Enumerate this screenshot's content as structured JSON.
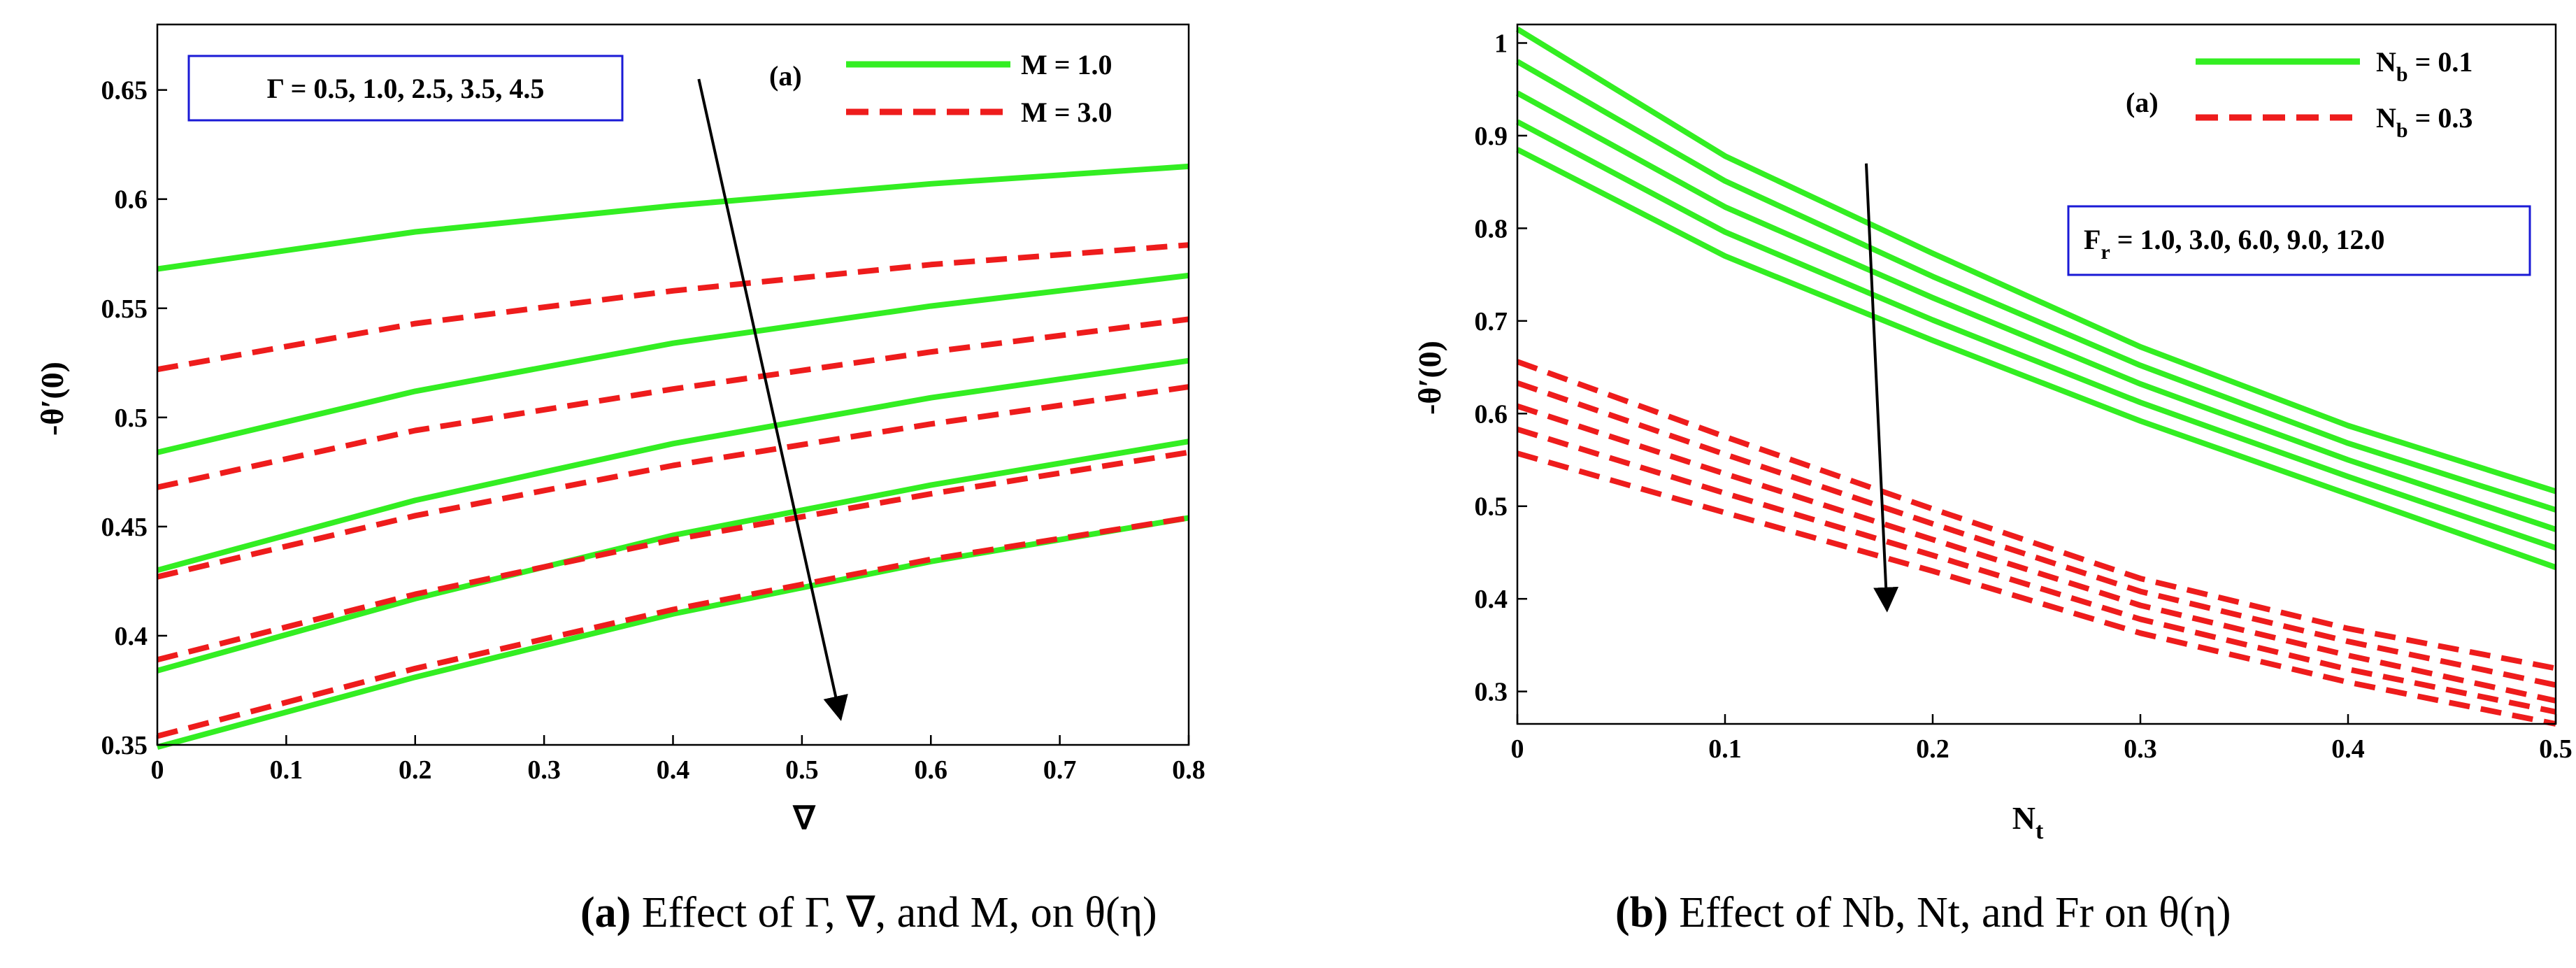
{
  "chart_data": [
    {
      "type": "line",
      "panel_label": "(a)",
      "xlabel": "∇",
      "ylabel": "-θ′(0)",
      "xlim": [
        0,
        0.8
      ],
      "ylim": [
        0.35,
        0.68
      ],
      "xticks": [
        "0",
        "0.1",
        "0.2",
        "0.3",
        "0.4",
        "0.5",
        "0.6",
        "0.7",
        "0.8"
      ],
      "yticks": [
        "0.35",
        "0.4",
        "0.45",
        "0.5",
        "0.55",
        "0.6",
        "0.65"
      ],
      "x": [
        0,
        0.2,
        0.4,
        0.6,
        0.8
      ],
      "legend": [
        "M = 1.0",
        "M = 3.0"
      ],
      "annotation": "Γ = 0.5, 1.0, 2.5, 3.5, 4.5",
      "series": [
        {
          "name": "M = 1.0, Γ = 0.5",
          "style": "solid",
          "color": "#33ee22",
          "values": [
            0.568,
            0.585,
            0.597,
            0.607,
            0.615
          ]
        },
        {
          "name": "M = 1.0, Γ = 1.0",
          "style": "solid",
          "color": "#33ee22",
          "values": [
            0.484,
            0.512,
            0.534,
            0.551,
            0.565
          ]
        },
        {
          "name": "M = 1.0, Γ = 2.5",
          "style": "solid",
          "color": "#33ee22",
          "values": [
            0.43,
            0.462,
            0.488,
            0.509,
            0.526
          ]
        },
        {
          "name": "M = 1.0, Γ = 3.5",
          "style": "solid",
          "color": "#33ee22",
          "values": [
            0.384,
            0.417,
            0.446,
            0.469,
            0.489
          ]
        },
        {
          "name": "M = 1.0, Γ = 4.5",
          "style": "solid",
          "color": "#33ee22",
          "values": [
            0.349,
            0.381,
            0.41,
            0.434,
            0.454
          ]
        },
        {
          "name": "M = 3.0, Γ = 0.5",
          "style": "dashed",
          "color": "#ee1c1c",
          "values": [
            0.522,
            0.543,
            0.558,
            0.57,
            0.579
          ]
        },
        {
          "name": "M = 3.0, Γ = 1.0",
          "style": "dashed",
          "color": "#ee1c1c",
          "values": [
            0.468,
            0.494,
            0.513,
            0.53,
            0.545
          ]
        },
        {
          "name": "M = 3.0, Γ = 2.5",
          "style": "dashed",
          "color": "#ee1c1c",
          "values": [
            0.427,
            0.455,
            0.478,
            0.497,
            0.514
          ]
        },
        {
          "name": "M = 3.0, Γ = 3.5",
          "style": "dashed",
          "color": "#ee1c1c",
          "values": [
            0.389,
            0.419,
            0.444,
            0.465,
            0.484
          ]
        },
        {
          "name": "M = 3.0, Γ = 4.5",
          "style": "dashed",
          "color": "#ee1c1c",
          "values": [
            0.354,
            0.385,
            0.412,
            0.435,
            0.454
          ]
        }
      ],
      "arrow": {
        "from": [
          0.42,
          0.655
        ],
        "to": [
          0.53,
          0.362
        ]
      }
    },
    {
      "type": "line",
      "panel_label": "(a)",
      "xlabel": "Nt",
      "ylabel": "-θ′(0)",
      "xlim": [
        0,
        0.5
      ],
      "ylim": [
        0.265,
        1.02
      ],
      "xticks": [
        "0",
        "0.1",
        "0.2",
        "0.3",
        "0.4",
        "0.5"
      ],
      "yticks": [
        "0.3",
        "0.4",
        "0.5",
        "0.6",
        "0.7",
        "0.8",
        "0.9",
        "1"
      ],
      "x": [
        0,
        0.1,
        0.2,
        0.3,
        0.4,
        0.5
      ],
      "legend": [
        "Nb = 0.1",
        "Nb = 0.3"
      ],
      "annotation": "Fr = 1.0, 3.0, 6.0, 9.0, 12.0",
      "series": [
        {
          "name": "Nb = 0.1, Fr = 1.0",
          "style": "solid",
          "color": "#33ee22",
          "values": [
            1.015,
            0.878,
            0.773,
            0.672,
            0.587,
            0.516
          ]
        },
        {
          "name": "Nb = 0.1, Fr = 3.0",
          "style": "solid",
          "color": "#33ee22",
          "values": [
            0.98,
            0.851,
            0.748,
            0.652,
            0.568,
            0.496
          ]
        },
        {
          "name": "Nb = 0.1, Fr = 6.0",
          "style": "solid",
          "color": "#33ee22",
          "values": [
            0.946,
            0.823,
            0.725,
            0.632,
            0.55,
            0.475
          ]
        },
        {
          "name": "Nb = 0.1, Fr = 9.0",
          "style": "solid",
          "color": "#33ee22",
          "values": [
            0.915,
            0.796,
            0.701,
            0.612,
            0.532,
            0.455
          ]
        },
        {
          "name": "Nb = 0.1, Fr = 12.0",
          "style": "solid",
          "color": "#33ee22",
          "values": [
            0.885,
            0.77,
            0.679,
            0.592,
            0.513,
            0.434
          ]
        },
        {
          "name": "Nb = 0.3, Fr = 1.0",
          "style": "dashed",
          "color": "#ee1c1c",
          "values": [
            0.656,
            0.575,
            0.497,
            0.422,
            0.368,
            0.325
          ]
        },
        {
          "name": "Nb = 0.3, Fr = 3.0",
          "style": "dashed",
          "color": "#ee1c1c",
          "values": [
            0.633,
            0.556,
            0.481,
            0.408,
            0.354,
            0.307
          ]
        },
        {
          "name": "Nb = 0.3, Fr = 6.0",
          "style": "dashed",
          "color": "#ee1c1c",
          "values": [
            0.608,
            0.535,
            0.464,
            0.393,
            0.339,
            0.29
          ]
        },
        {
          "name": "Nb = 0.3, Fr = 9.0",
          "style": "dashed",
          "color": "#ee1c1c",
          "values": [
            0.583,
            0.514,
            0.447,
            0.378,
            0.324,
            0.278
          ]
        },
        {
          "name": "Nb = 0.3, Fr = 12.0",
          "style": "dashed",
          "color": "#ee1c1c",
          "values": [
            0.557,
            0.493,
            0.43,
            0.363,
            0.31,
            0.265
          ]
        }
      ],
      "arrow": {
        "from": [
          0.168,
          0.87
        ],
        "to": [
          0.178,
          0.388
        ]
      }
    }
  ],
  "panel_a": {
    "legend_label_1": "M = 1.0",
    "legend_label_2": "M = 3.0",
    "tag": "(a)",
    "annotation": "Γ = 0.5, 1.0, 2.5, 3.5, 4.5",
    "xlabel": "∇",
    "ylabel": "-θ′(0)",
    "caption_letter": "(a)",
    "caption_text": " Effect of Γ, ∇, and M, on θ(η)"
  },
  "panel_b": {
    "legend_base_1": "N",
    "legend_sub_1": "b",
    "legend_value_1": " = 0.1",
    "legend_base_2": "N",
    "legend_sub_2": "b",
    "legend_value_2": " = 0.3",
    "tag": "(a)",
    "annotation_base": "F",
    "annotation_sub": "r",
    "annotation_value": " = 1.0, 3.0, 6.0, 9.0, 12.0",
    "xlabel_base": "N",
    "xlabel_sub": "t",
    "ylabel": "-θ′(0)",
    "caption_letter": "(b)",
    "caption_text": " Effect of Nb, Nt, and Fr on θ(η)"
  }
}
